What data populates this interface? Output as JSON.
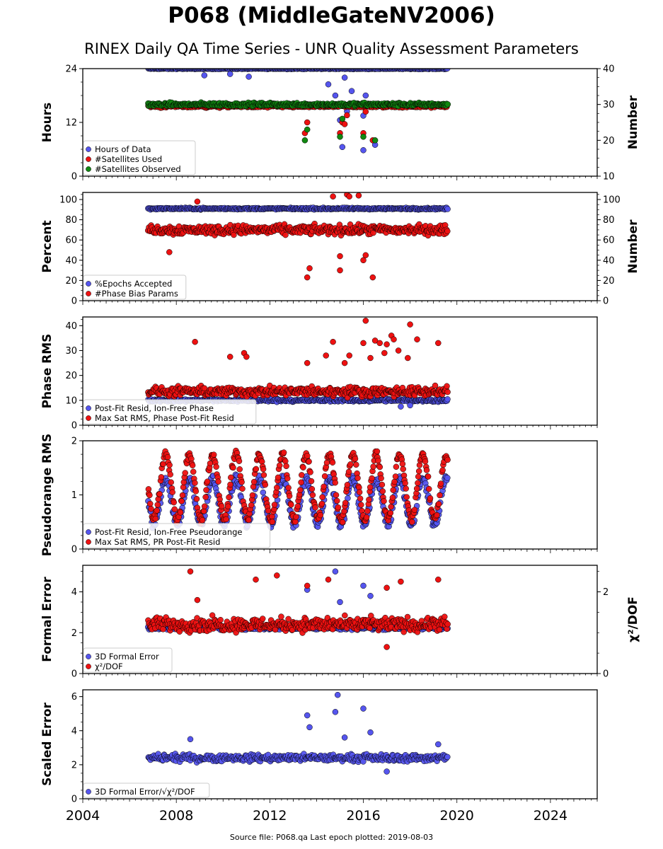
{
  "header": {
    "title": "P068 (MiddleGateNV2006)",
    "subtitle": "RINEX Daily QA Time Series - UNR Quality Assessment Parameters"
  },
  "footer": {
    "text": "Source file: P068.qa Last epoch plotted: 2019-08-03"
  },
  "colors": {
    "blue": "#5555ee",
    "red": "#ee1111",
    "green": "#118811",
    "edge": "#000000"
  },
  "chart_data": [
    {
      "type": "scatter",
      "panel": "hours",
      "ylabel": "Hours",
      "ylabel_right": "Number",
      "xlim": [
        2004,
        2026
      ],
      "ylim": [
        0,
        24
      ],
      "ylim_right": [
        10,
        40
      ],
      "yticks": [
        "0",
        "12",
        "24"
      ],
      "yticks_right": [
        "10",
        "20",
        "30",
        "40"
      ],
      "legend_position": "lower-left",
      "series": [
        {
          "name": "Hours of Data",
          "color": "blue",
          "axis": "left",
          "base": 24,
          "spread": 0.15,
          "x_range": [
            2006.8,
            2019.6
          ],
          "outliers": [
            [
              2009.2,
              22.5
            ],
            [
              2010.3,
              22.8
            ],
            [
              2011.1,
              22.2
            ],
            [
              2014.5,
              20.5
            ],
            [
              2014.8,
              18.0
            ],
            [
              2015.0,
              12.5
            ],
            [
              2015.1,
              6.5
            ],
            [
              2015.3,
              14.5
            ],
            [
              2015.5,
              19.0
            ],
            [
              2016.0,
              13.5
            ],
            [
              2016.05,
              16.0
            ],
            [
              2016.1,
              18.0
            ],
            [
              2016.0,
              5.8
            ],
            [
              2016.5,
              7.0
            ],
            [
              2015.2,
              22.0
            ]
          ]
        },
        {
          "name": "#Satellites Used",
          "color": "red",
          "axis": "right",
          "base": 29.5,
          "spread": 0.6,
          "x_range": [
            2006.8,
            2019.6
          ],
          "outliers": [
            [
              2008.7,
              30.0
            ],
            [
              2013.5,
              22.0
            ],
            [
              2013.6,
              25.0
            ],
            [
              2015.0,
              22.0
            ],
            [
              2015.1,
              25.0
            ],
            [
              2015.3,
              27.0
            ],
            [
              2016.0,
              22.0
            ],
            [
              2016.1,
              28.0
            ],
            [
              2016.4,
              20.0
            ],
            [
              2015.2,
              24.5
            ]
          ]
        },
        {
          "name": "#Satellites Observed",
          "color": "green",
          "axis": "right",
          "base": 30.0,
          "spread": 0.7,
          "x_range": [
            2006.8,
            2019.6
          ],
          "outliers": [
            [
              2013.5,
              20.0
            ],
            [
              2013.6,
              23.0
            ],
            [
              2015.0,
              21.0
            ],
            [
              2015.1,
              26.0
            ],
            [
              2016.0,
              21.0
            ],
            [
              2016.5,
              20.0
            ]
          ]
        }
      ]
    },
    {
      "type": "scatter",
      "panel": "percent",
      "ylabel": "Percent",
      "ylabel_right": "Number",
      "xlim": [
        2004,
        2026
      ],
      "ylim": [
        0,
        107
      ],
      "ylim_right": [
        0,
        107
      ],
      "yticks": [
        "0",
        "20",
        "40",
        "60",
        "80",
        "100"
      ],
      "yticks_right": [
        "0",
        "20",
        "40",
        "60",
        "80",
        "100"
      ],
      "legend_position": "lower-left",
      "series": [
        {
          "name": "%Epochs Accepted",
          "color": "blue",
          "axis": "left",
          "base": 91,
          "spread": 1.2,
          "x_range": [
            2006.8,
            2019.6
          ],
          "outliers": []
        },
        {
          "name": "#Phase Bias Params",
          "color": "red",
          "axis": "right",
          "base": 70,
          "spread": 7,
          "x_range": [
            2006.8,
            2019.6
          ],
          "outliers": [
            [
              2007.7,
              48
            ],
            [
              2008.9,
              98
            ],
            [
              2013.6,
              23
            ],
            [
              2013.7,
              32
            ],
            [
              2015.0,
              30
            ],
            [
              2015.0,
              44
            ],
            [
              2015.3,
              105
            ],
            [
              2015.4,
              103
            ],
            [
              2016.0,
              40
            ],
            [
              2016.1,
              45
            ],
            [
              2016.4,
              23
            ],
            [
              2014.7,
              103
            ],
            [
              2015.8,
              104
            ]
          ]
        }
      ]
    },
    {
      "type": "scatter",
      "panel": "phase-rms",
      "ylabel": "Phase RMS",
      "xlim": [
        2004,
        2026
      ],
      "ylim": [
        0,
        43.5
      ],
      "yticks": [
        "0",
        "10",
        "20",
        "30",
        "40"
      ],
      "legend_position": "lower-left",
      "series": [
        {
          "name": "Post-Fit Resid, Ion-Free Phase",
          "color": "blue",
          "axis": "left",
          "base": 10,
          "spread": 0.8,
          "x_range": [
            2006.8,
            2019.6
          ],
          "outliers": [
            [
              2017.6,
              7.5
            ],
            [
              2018.0,
              8.0
            ]
          ]
        },
        {
          "name": "Max Sat RMS, Phase Post-Fit Resid",
          "color": "red",
          "axis": "left",
          "base": 13.5,
          "spread": 2.8,
          "x_range": [
            2006.8,
            2019.6
          ],
          "outliers": [
            [
              2008.8,
              33.5
            ],
            [
              2010.3,
              27.5
            ],
            [
              2010.9,
              29.0
            ],
            [
              2011.0,
              27.5
            ],
            [
              2013.6,
              25.0
            ],
            [
              2014.4,
              28.0
            ],
            [
              2014.7,
              33.5
            ],
            [
              2015.4,
              28.0
            ],
            [
              2016.0,
              33.0
            ],
            [
              2016.1,
              42.0
            ],
            [
              2016.5,
              34.0
            ],
            [
              2016.7,
              33.0
            ],
            [
              2017.0,
              32.5
            ],
            [
              2017.2,
              36.0
            ],
            [
              2017.3,
              34.5
            ],
            [
              2017.5,
              30.0
            ],
            [
              2018.0,
              40.5
            ],
            [
              2018.3,
              34.5
            ],
            [
              2019.2,
              33.0
            ],
            [
              2016.3,
              27.0
            ],
            [
              2016.9,
              29.0
            ],
            [
              2015.2,
              25.0
            ],
            [
              2017.9,
              27.0
            ]
          ]
        }
      ]
    },
    {
      "type": "scatter",
      "panel": "pseudorange-rms",
      "ylabel": "Pseudorange RMS",
      "xlim": [
        2004,
        2026
      ],
      "ylim": [
        0,
        2
      ],
      "yticks": [
        "0",
        "1",
        "2"
      ],
      "legend_position": "lower-left",
      "seasonal": true,
      "series": [
        {
          "name": "Post-Fit Resid, Ion-Free Pseudorange",
          "color": "blue",
          "axis": "left",
          "low": 0.45,
          "high": 1.3,
          "x_range": [
            2006.8,
            2019.6
          ],
          "outliers": []
        },
        {
          "name": "Max Sat RMS, PR Post-Fit Resid",
          "color": "red",
          "axis": "left",
          "low": 0.55,
          "high": 1.75,
          "x_range": [
            2006.8,
            2019.6
          ],
          "outliers": []
        }
      ]
    },
    {
      "type": "scatter",
      "panel": "formal-error",
      "ylabel": "Formal Error",
      "ylabel_right": "χ²/DOF",
      "xlim": [
        2004,
        2026
      ],
      "ylim": [
        0,
        5.3
      ],
      "ylim_right": [
        0,
        2.65
      ],
      "yticks": [
        "0",
        "2",
        "4"
      ],
      "yticks_right": [
        "0",
        "2"
      ],
      "legend_position": "lower-left",
      "series": [
        {
          "name": "3D Formal Error",
          "color": "blue",
          "axis": "left",
          "base": 2.25,
          "spread": 0.15,
          "x_range": [
            2006.8,
            2019.6
          ],
          "outliers": [
            [
              2013.6,
              4.1
            ],
            [
              2014.8,
              5.0
            ],
            [
              2016.0,
              4.3
            ],
            [
              2016.3,
              3.8
            ],
            [
              2015.0,
              3.5
            ]
          ]
        },
        {
          "name": "χ²/DOF",
          "color": "red",
          "axis": "left",
          "base": 2.4,
          "spread": 0.5,
          "x_range": [
            2006.8,
            2019.6
          ],
          "outliers": [
            [
              2008.6,
              5.0
            ],
            [
              2011.4,
              4.6
            ],
            [
              2012.3,
              4.8
            ],
            [
              2013.6,
              4.3
            ],
            [
              2014.5,
              4.6
            ],
            [
              2017.0,
              4.2
            ],
            [
              2017.6,
              4.5
            ],
            [
              2019.2,
              4.6
            ],
            [
              2017.0,
              1.3
            ],
            [
              2008.9,
              3.6
            ]
          ]
        }
      ]
    },
    {
      "type": "scatter",
      "panel": "scaled-error",
      "ylabel": "Scaled Error",
      "xlim": [
        2004,
        2026
      ],
      "ylim": [
        0,
        6.4
      ],
      "yticks": [
        "0",
        "2",
        "4",
        "6"
      ],
      "xticks": [
        "2004",
        "2008",
        "2012",
        "2016",
        "2020",
        "2024"
      ],
      "legend_position": "lower-left",
      "series": [
        {
          "name": "3D Formal Error/√χ²/DOF",
          "color": "blue",
          "axis": "left",
          "base": 2.4,
          "spread": 0.3,
          "x_range": [
            2006.8,
            2019.6
          ],
          "outliers": [
            [
              2008.6,
              3.5
            ],
            [
              2013.6,
              4.9
            ],
            [
              2013.7,
              4.2
            ],
            [
              2014.8,
              5.1
            ],
            [
              2014.9,
              6.1
            ],
            [
              2016.0,
              5.3
            ],
            [
              2016.3,
              3.9
            ],
            [
              2015.2,
              3.6
            ],
            [
              2019.2,
              3.2
            ],
            [
              2017.0,
              1.6
            ]
          ]
        }
      ]
    }
  ]
}
